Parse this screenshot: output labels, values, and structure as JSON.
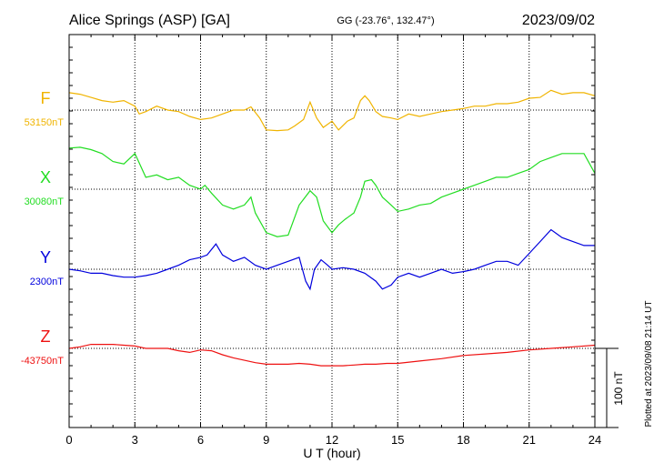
{
  "header": {
    "title": "Alice Springs (ASP)  [GA]",
    "coords": "GG (-23.76°, 132.47°)",
    "date": "2023/09/02"
  },
  "side_note": "Plotted at 2023/09/08 21:14 UT",
  "scale_bar": {
    "label": "100 nT",
    "value_nT": 100
  },
  "chart_data": {
    "type": "line",
    "xlabel": "U T (hour)",
    "xlim": [
      0,
      24
    ],
    "xticks": [
      "0",
      "3",
      "6",
      "9",
      "12",
      "15",
      "18",
      "21",
      "24"
    ],
    "grid": true,
    "nT_per_division": 100,
    "series": [
      {
        "name": "F",
        "baseline_label": "53150nT",
        "baseline_nT": 53150,
        "color": "#f0b400",
        "x": [
          0,
          0.5,
          1,
          1.5,
          2,
          2.5,
          3,
          3.2,
          3.5,
          4,
          4.5,
          5,
          5.5,
          6,
          6.5,
          7,
          7.5,
          8,
          8.3,
          8.7,
          9,
          9.5,
          10,
          10.3,
          10.7,
          11,
          11.3,
          11.6,
          12,
          12.3,
          12.7,
          13,
          13.3,
          13.5,
          13.7,
          14,
          14.3,
          14.7,
          15,
          15.5,
          16,
          16.5,
          17,
          17.5,
          18,
          18.5,
          19,
          19.5,
          20,
          20.5,
          21,
          21.5,
          22,
          22.5,
          23,
          23.5,
          24
        ],
        "y": [
          22,
          20,
          16,
          12,
          10,
          12,
          5,
          -5,
          -2,
          5,
          0,
          -2,
          -8,
          -12,
          -10,
          -5,
          0,
          0,
          4,
          -10,
          -25,
          -26,
          -25,
          -20,
          -12,
          10,
          -10,
          -22,
          -14,
          -25,
          -14,
          -10,
          12,
          18,
          12,
          -2,
          -8,
          -10,
          -12,
          -5,
          -8,
          -5,
          -2,
          0,
          2,
          5,
          5,
          8,
          8,
          10,
          15,
          16,
          25,
          20,
          22,
          22,
          18
        ]
      },
      {
        "name": "X",
        "baseline_label": "30080nT",
        "baseline_nT": 30080,
        "color": "#22dd22",
        "x": [
          0,
          0.5,
          1,
          1.5,
          2,
          2.5,
          3,
          3.5,
          4,
          4.5,
          5,
          5.5,
          6,
          6.2,
          6.5,
          7,
          7.5,
          8,
          8.3,
          8.5,
          9,
          9.5,
          10,
          10.5,
          11,
          11.3,
          11.6,
          12,
          12.3,
          12.6,
          13,
          13.3,
          13.5,
          13.8,
          14,
          14.3,
          14.7,
          15,
          15.5,
          16,
          16.5,
          17,
          17.5,
          18,
          18.5,
          19,
          19.5,
          20,
          20.5,
          21,
          21.5,
          22,
          22.5,
          23,
          23.5,
          24
        ],
        "y": [
          52,
          53,
          50,
          45,
          35,
          32,
          45,
          15,
          18,
          12,
          15,
          5,
          0,
          5,
          -5,
          -20,
          -25,
          -20,
          -10,
          -30,
          -55,
          -60,
          -58,
          -20,
          -2,
          -10,
          -40,
          -55,
          -45,
          -38,
          -30,
          -10,
          10,
          12,
          5,
          -10,
          -20,
          -28,
          -25,
          -20,
          -18,
          -10,
          -5,
          0,
          5,
          10,
          15,
          15,
          20,
          25,
          35,
          40,
          45,
          45,
          45,
          20
        ]
      },
      {
        "name": "Y",
        "baseline_label": "2300nT",
        "baseline_nT": 2300,
        "color": "#0000dd",
        "x": [
          0,
          0.5,
          1,
          1.5,
          2,
          2.5,
          3,
          3.5,
          4,
          4.5,
          5,
          5.5,
          6,
          6.3,
          6.7,
          7,
          7.5,
          8,
          8.5,
          9,
          9.5,
          10,
          10.5,
          10.8,
          11,
          11.2,
          11.5,
          11.8,
          12,
          12.5,
          13,
          13.5,
          14,
          14.3,
          14.7,
          15,
          15.5,
          16,
          16.5,
          17,
          17.5,
          18,
          18.5,
          19,
          19.5,
          20,
          20.5,
          21,
          21.5,
          22,
          22.5,
          23,
          23.5,
          24
        ],
        "y": [
          0,
          -2,
          -5,
          -5,
          -8,
          -10,
          -10,
          -8,
          -5,
          0,
          5,
          12,
          15,
          18,
          32,
          18,
          10,
          15,
          5,
          0,
          5,
          10,
          15,
          -15,
          -25,
          0,
          12,
          5,
          0,
          2,
          0,
          -5,
          -15,
          -25,
          -20,
          -10,
          -5,
          -10,
          -5,
          0,
          -5,
          -3,
          0,
          5,
          10,
          10,
          5,
          20,
          35,
          50,
          40,
          35,
          30,
          30
        ]
      },
      {
        "name": "Z",
        "baseline_label": "-43750nT",
        "baseline_nT": -43750,
        "color": "#ee1111",
        "x": [
          0,
          0.5,
          1,
          1.5,
          2,
          2.5,
          3,
          3.5,
          4,
          4.5,
          5,
          5.5,
          6,
          6.5,
          7,
          7.5,
          8,
          8.5,
          9,
          9.5,
          10,
          10.5,
          11,
          11.5,
          12,
          12.5,
          13,
          13.5,
          14,
          14.5,
          15,
          16,
          17,
          18,
          19,
          20,
          21,
          22,
          23,
          24
        ],
        "y": [
          0,
          2,
          5,
          5,
          5,
          4,
          3,
          0,
          0,
          0,
          -3,
          -5,
          -2,
          -3,
          -8,
          -12,
          -15,
          -18,
          -20,
          -20,
          -20,
          -19,
          -20,
          -22,
          -22,
          -22,
          -21,
          -20,
          -20,
          -19,
          -19,
          -16,
          -13,
          -9,
          -7,
          -5,
          -2,
          0,
          2,
          4
        ]
      }
    ]
  }
}
